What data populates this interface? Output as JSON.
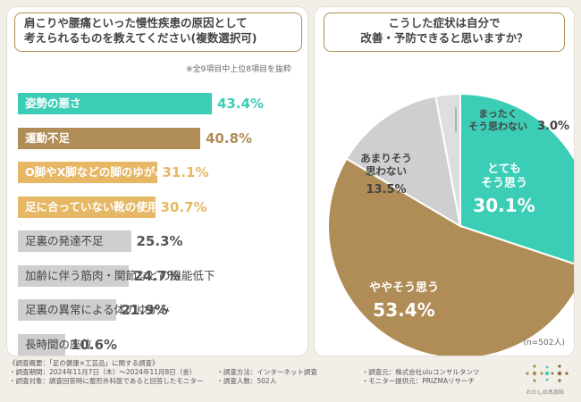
{
  "left": {
    "question": "肩こりや腰痛といった慢性疾患の原因として\n考えられるものを教えてください(複数選択可)",
    "note": "※全9項目中上位8項目を抜粋"
  },
  "right": {
    "question": "こうした症状は自分で\n改善・予防できると思いますか？",
    "n_label": "(n=502人)"
  },
  "colors": {
    "teal": "#3ccdb6",
    "brown": "#b08d57",
    "tan": "#e6b764",
    "gray": "#cfcfcf"
  },
  "chart_data": [
    {
      "type": "bar",
      "orientation": "horizontal",
      "title": "肩こりや腰痛といった慢性疾患の原因として考えられるものを教えてください(複数選択可)",
      "categories": [
        "姿勢の悪さ",
        "運動不足",
        "O脚やX脚などの脚のゆがみ",
        "足に合っていない靴の使用",
        "足裏の発達不足",
        "加齢に伴う筋肉・関節などの機能低下",
        "足裏の異常による体のゆがみ",
        "長時間の座位"
      ],
      "values": [
        43.4,
        40.8,
        31.1,
        30.7,
        25.3,
        24.7,
        21.9,
        10.6
      ],
      "value_labels": [
        "43.4%",
        "40.8%",
        "31.1%",
        "30.7%",
        "25.3%",
        "24.7%",
        "21.9%",
        "10.6%"
      ],
      "unit": "%",
      "xlim": [
        0,
        50
      ]
    },
    {
      "type": "pie",
      "title": "こうした症状は自分で改善・予防できると思いますか？",
      "categories": [
        "とてもそう思う",
        "ややそう思う",
        "あまりそう思わない",
        "まったくそう思わない"
      ],
      "values": [
        30.1,
        53.4,
        13.5,
        3.0
      ],
      "value_labels": [
        "30.1%",
        "53.4%",
        "13.5%",
        "3.0%"
      ],
      "unit": "%"
    }
  ],
  "footer": {
    "title": "《調査概要：「足の健康×工芸品」に関する調査》",
    "period": "・調査期間：2024年11月7日（木）〜2024年11月8日（金）",
    "method": "・調査方法：インターネット調査",
    "org": "・調査元：株式会社uluコンサルタンツ",
    "target": "・調査対象：調査回答時に整形外科医であると回答したモニター",
    "count": "・調査人数：502人",
    "provider": "・モニター提供元：PRIZMAリサーチ"
  },
  "logo": {
    "text": "わたしの名品帖",
    "icon": "flower-logo-icon"
  }
}
